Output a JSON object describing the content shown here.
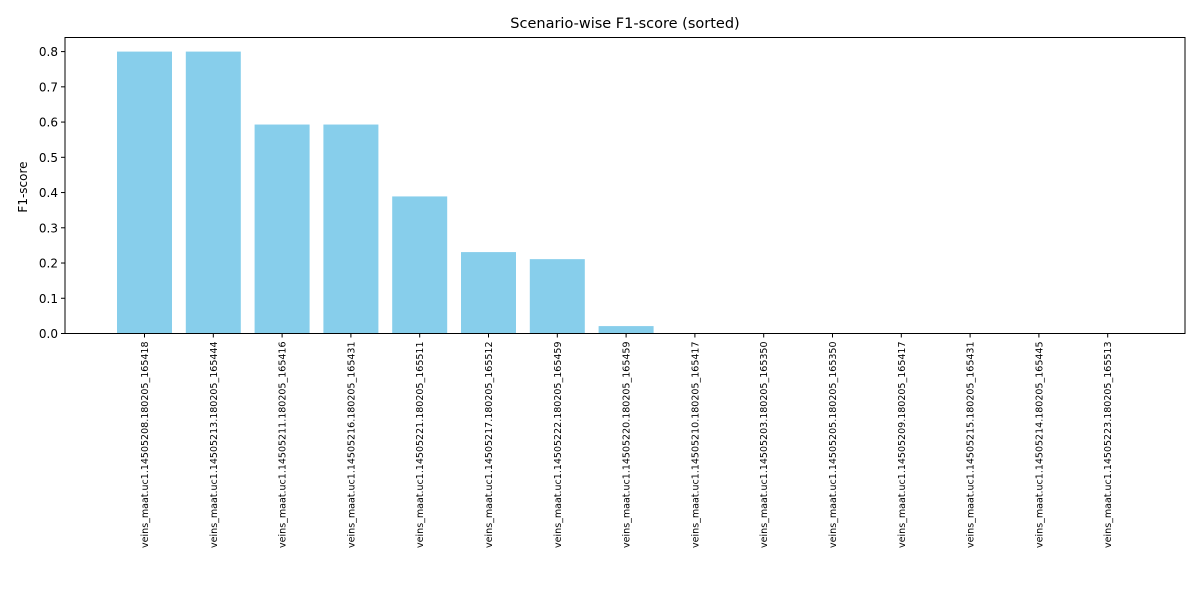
{
  "chart_data": {
    "type": "bar",
    "title": "Scenario-wise F1-score (sorted)",
    "xlabel": "",
    "ylabel": "F1-score",
    "ylim": [
      0,
      0.84
    ],
    "yticks": [
      "0.0",
      "0.1",
      "0.2",
      "0.3",
      "0.4",
      "0.5",
      "0.6",
      "0.7",
      "0.8"
    ],
    "grid": false,
    "bar_color": "#87CEEB",
    "categories": [
      "veins_maat.uc1.14505208.180205_165418",
      "veins_maat.uc1.14505213.180205_165444",
      "veins_maat.uc1.14505211.180205_165416",
      "veins_maat.uc1.14505216.180205_165431",
      "veins_maat.uc1.14505221.180205_165511",
      "veins_maat.uc1.14505217.180205_165512",
      "veins_maat.uc1.14505222.180205_165459",
      "veins_maat.uc1.14505220.180205_165459",
      "veins_maat.uc1.14505210.180205_165417",
      "veins_maat.uc1.14505203.180205_165350",
      "veins_maat.uc1.14505205.180205_165350",
      "veins_maat.uc1.14505209.180205_165417",
      "veins_maat.uc1.14505215.180205_165431",
      "veins_maat.uc1.14505214.180205_165445",
      "veins_maat.uc1.14505223.180205_165513"
    ],
    "values": [
      0.8,
      0.8,
      0.593,
      0.593,
      0.389,
      0.231,
      0.211,
      0.021,
      0,
      0,
      0,
      0,
      0,
      0,
      0
    ]
  }
}
